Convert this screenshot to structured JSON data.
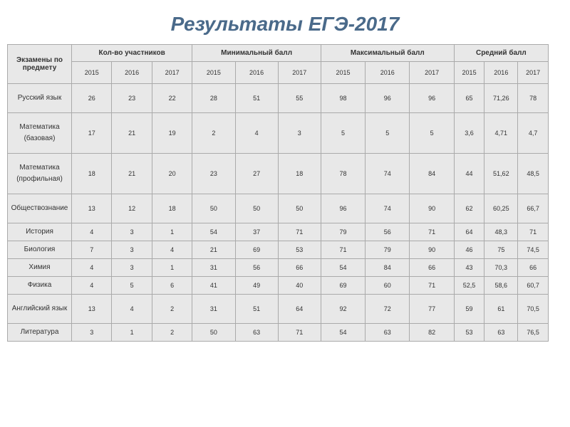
{
  "title": "Результаты ЕГЭ-2017",
  "headers": {
    "subject": "Экзамены по предмету",
    "groups": [
      "Кол-во участников",
      "Минимальный балл",
      "Максимальный балл",
      "Средний балл"
    ],
    "years": [
      "2015",
      "2016",
      "2017"
    ]
  },
  "rows": [
    {
      "subject": "Русский язык",
      "height": "tall",
      "values": [
        "26",
        "23",
        "22",
        "28",
        "51",
        "55",
        "98",
        "96",
        "96",
        "65",
        "71,26",
        "78"
      ]
    },
    {
      "subject": "Математика (базовая)",
      "height": "tall",
      "values": [
        "17",
        "21",
        "19",
        "2",
        "4",
        "3",
        "5",
        "5",
        "5",
        "3,6",
        "4,71",
        "4,7"
      ]
    },
    {
      "subject": "Математика (профильная)",
      "height": "tall",
      "values": [
        "18",
        "21",
        "20",
        "23",
        "27",
        "18",
        "78",
        "74",
        "84",
        "44",
        "51,62",
        "48,5"
      ]
    },
    {
      "subject": "Обществознание",
      "height": "tall",
      "values": [
        "13",
        "12",
        "18",
        "50",
        "50",
        "50",
        "96",
        "74",
        "90",
        "62",
        "60,25",
        "66,7"
      ]
    },
    {
      "subject": "История",
      "height": "short",
      "values": [
        "4",
        "3",
        "1",
        "54",
        "37",
        "71",
        "79",
        "56",
        "71",
        "64",
        "48,3",
        "71"
      ]
    },
    {
      "subject": "Биология",
      "height": "short",
      "values": [
        "7",
        "3",
        "4",
        "21",
        "69",
        "53",
        "71",
        "79",
        "90",
        "46",
        "75",
        "74,5"
      ]
    },
    {
      "subject": "Химия",
      "height": "short",
      "values": [
        "4",
        "3",
        "1",
        "31",
        "56",
        "66",
        "54",
        "84",
        "66",
        "43",
        "70,3",
        "66"
      ]
    },
    {
      "subject": "Физика",
      "height": "short",
      "values": [
        "4",
        "5",
        "6",
        "41",
        "49",
        "40",
        "69",
        "60",
        "71",
        "52,5",
        "58,6",
        "60,7"
      ]
    },
    {
      "subject": "Английский язык",
      "height": "tall",
      "values": [
        "13",
        "4",
        "2",
        "31",
        "51",
        "64",
        "92",
        "72",
        "77",
        "59",
        "61",
        "70,5"
      ]
    },
    {
      "subject": "Литература",
      "height": "short",
      "values": [
        "3",
        "1",
        "2",
        "50",
        "63",
        "71",
        "54",
        "63",
        "82",
        "53",
        "63",
        "76,5"
      ]
    }
  ],
  "colors": {
    "title": "#4a6a8a",
    "cell_bg": "#e8e8e8",
    "border": "#aaaaaa",
    "text": "#333333"
  },
  "fonts": {
    "title_size": 28,
    "header_size": 10,
    "cell_size": 9
  }
}
